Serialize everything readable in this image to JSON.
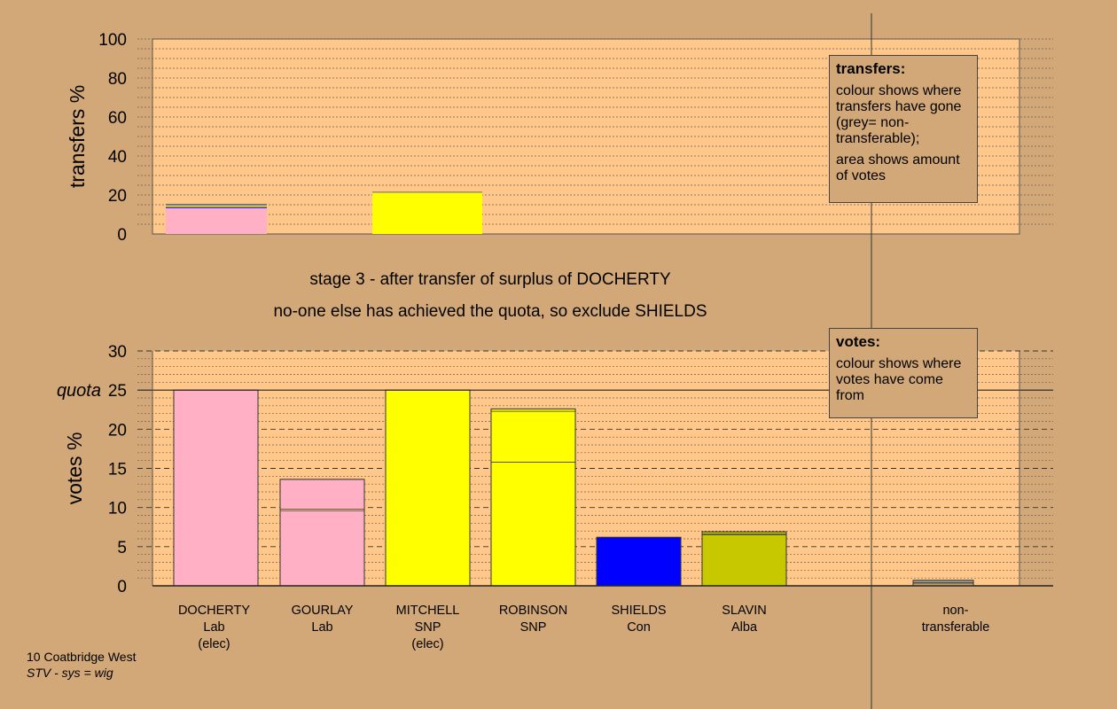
{
  "captions": {
    "line1": "stage 3 - after transfer of surplus of DOCHERTY",
    "line2": "no-one else has achieved the quota, so exclude SHIELDS"
  },
  "footer": {
    "line1": "10 Coatbridge West",
    "line2": "STV - sys = wig"
  },
  "legends": {
    "transfers": {
      "title": "transfers:",
      "p1": "colour shows where transfers have gone (grey= non-transferable);",
      "p2": "area shows amount of votes"
    },
    "votes": {
      "title": "votes:",
      "p1": "colour shows where votes have come from"
    }
  },
  "colors": {
    "background": "#d2a878",
    "plot_bg": "#ffc88a",
    "Lab": "#ffb0c4",
    "SNP": "#ffff00",
    "Con": "#0000ff",
    "Alba": "#c8c800",
    "nontransferable": "#a0a0a0"
  },
  "chart_data": [
    {
      "type": "bar",
      "ylabel": "transfers %",
      "ylim": [
        0,
        100
      ],
      "yticks": [
        0,
        20,
        40,
        60,
        80,
        100
      ],
      "grid": true,
      "bars": [
        {
          "slot": 0,
          "segments": [
            {
              "party": "Lab",
              "from": 0,
              "to": 13.2
            },
            {
              "party": "Con",
              "from": 13.2,
              "to": 13.6
            },
            {
              "party": "Alba",
              "from": 13.6,
              "to": 14.2
            },
            {
              "party": "nontransferable",
              "from": 14.2,
              "to": 15.2
            }
          ]
        },
        {
          "slot": 2,
          "segments": [
            {
              "party": "SNP",
              "from": 0,
              "to": 21.4
            }
          ]
        }
      ]
    },
    {
      "type": "bar",
      "ylabel": "votes %",
      "ylim": [
        0,
        30
      ],
      "yticks": [
        0,
        5,
        10,
        15,
        20,
        25,
        30
      ],
      "quota": 25,
      "quota_label": "quota",
      "grid": true,
      "candidates": [
        {
          "name": "DOCHERTY",
          "party": "Lab",
          "note": "(elec)"
        },
        {
          "name": "GOURLAY",
          "party": "Lab",
          "note": ""
        },
        {
          "name": "MITCHELL",
          "party": "SNP",
          "note": "(elec)"
        },
        {
          "name": "ROBINSON",
          "party": "SNP",
          "note": ""
        },
        {
          "name": "SHIELDS",
          "party": "Con",
          "note": ""
        },
        {
          "name": "SLAVIN",
          "party": "Alba",
          "note": ""
        }
      ],
      "nontransferable_label": [
        "non-",
        "transferable"
      ],
      "bars": [
        {
          "slot": 0,
          "total": 25.0,
          "segments": [
            {
              "party": "Lab",
              "from": 0,
              "to": 25.0
            }
          ]
        },
        {
          "slot": 1,
          "total": 13.6,
          "segments": [
            {
              "party": "Lab",
              "from": 0,
              "to": 9.6
            },
            {
              "party": "Lab",
              "from": 9.8,
              "to": 13.6
            }
          ]
        },
        {
          "slot": 2,
          "total": 25.0,
          "segments": [
            {
              "party": "SNP",
              "from": 0,
              "to": 25.0
            }
          ]
        },
        {
          "slot": 3,
          "total": 22.6,
          "segments": [
            {
              "party": "SNP",
              "from": 0,
              "to": 15.8
            },
            {
              "party": "SNP",
              "from": 15.8,
              "to": 22.3
            },
            {
              "party": "SNP",
              "from": 22.3,
              "to": 22.6
            }
          ]
        },
        {
          "slot": 4,
          "total": 6.2,
          "segments": [
            {
              "party": "Con",
              "from": 0,
              "to": 6.2
            }
          ]
        },
        {
          "slot": 5,
          "total": 6.9,
          "segments": [
            {
              "party": "Alba",
              "from": 0,
              "to": 6.5
            },
            {
              "party": "Alba",
              "from": 6.6,
              "to": 6.9
            }
          ]
        },
        {
          "slot": "nt",
          "total": 0.7,
          "segments": [
            {
              "party": "Lab",
              "from": 0,
              "to": 0.25
            },
            {
              "party": "SNP",
              "from": 0.25,
              "to": 0.4
            },
            {
              "party": "nontransferable",
              "from": 0.4,
              "to": 0.7
            }
          ]
        }
      ]
    }
  ]
}
